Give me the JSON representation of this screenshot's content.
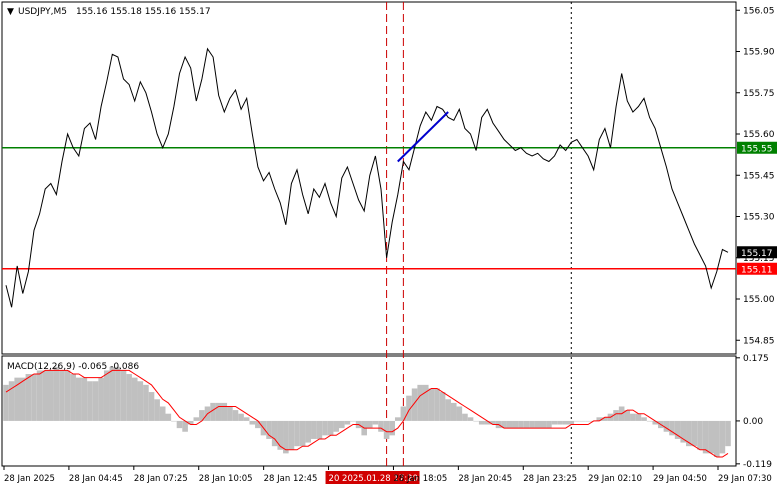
{
  "header": {
    "symbol": "USDJPY,M5",
    "ohlc": "155.16 155.18 155.16 155.17",
    "collapse_glyph": "▼"
  },
  "colors": {
    "price_line": "#000000",
    "support_line": "#ff0000",
    "resistance_line": "#008000",
    "trend_segment": "#0000cd",
    "macd_histogram": "#c0c0c0",
    "macd_signal": "#ff0000",
    "vertical_marker": "#cc0000",
    "last_price_badge": "#000000"
  },
  "chart_data": [
    {
      "type": "line",
      "name": "price",
      "y_ticks": [
        "156.05",
        "155.90",
        "155.75",
        "155.60",
        "155.45",
        "155.30",
        "155.15",
        "155.00",
        "154.85"
      ],
      "ylim": [
        154.8,
        156.08
      ],
      "levels": {
        "resistance": {
          "value": 155.55,
          "label": "155.55"
        },
        "support": {
          "value": 155.11,
          "label": "155.11"
        },
        "last": {
          "value": 155.17,
          "label": "155.17"
        }
      },
      "x_labels": [
        "28 Jan 2025",
        "28 Jan 04:45",
        "28 Jan 07:25",
        "28 Jan 10:05",
        "28 Jan 12:45",
        "20 2025.01.28 17:20",
        "28 Jan 18:05",
        "28 Jan 20:45",
        "28 Jan 23:25",
        "29 Jan 02:10",
        "29 Jan 04:50",
        "29 Jan 07:30"
      ],
      "highlight_label_index": 5,
      "series": [
        {
          "values": [
            155.05,
            154.97,
            155.12,
            155.02,
            155.1,
            155.25,
            155.31,
            155.4,
            155.42,
            155.38,
            155.5,
            155.6,
            155.55,
            155.52,
            155.62,
            155.64,
            155.58,
            155.7,
            155.79,
            155.89,
            155.88,
            155.8,
            155.78,
            155.72,
            155.79,
            155.75,
            155.68,
            155.6,
            155.55,
            155.6,
            155.7,
            155.82,
            155.88,
            155.84,
            155.72,
            155.8,
            155.91,
            155.88,
            155.74,
            155.68,
            155.73,
            155.76,
            155.69,
            155.73,
            155.6,
            155.48,
            155.43,
            155.46,
            155.4,
            155.35,
            155.27,
            155.42,
            155.47,
            155.38,
            155.31,
            155.4,
            155.37,
            155.42,
            155.35,
            155.3,
            155.44,
            155.48,
            155.42,
            155.36,
            155.32,
            155.45,
            155.52,
            155.4,
            155.15,
            155.28,
            155.38,
            155.5,
            155.47,
            155.55,
            155.63,
            155.68,
            155.65,
            155.7,
            155.69,
            155.66,
            155.65,
            155.69,
            155.62,
            155.6,
            155.54,
            155.66,
            155.69,
            155.64,
            155.61,
            155.58,
            155.56,
            155.54,
            155.55,
            155.53,
            155.52,
            155.53,
            155.51,
            155.5,
            155.52,
            155.56,
            155.54,
            155.57,
            155.58,
            155.55,
            155.52,
            155.47,
            155.58,
            155.62,
            155.55,
            155.7,
            155.82,
            155.72,
            155.68,
            155.7,
            155.73,
            155.66,
            155.62,
            155.55,
            155.48,
            155.4,
            155.35,
            155.3,
            155.25,
            155.2,
            155.16,
            155.12,
            155.04,
            155.1,
            155.18,
            155.17
          ],
          "trend_segment": {
            "from_index": 70,
            "to_index": 79,
            "from_value": 155.5,
            "to_value": 155.68
          }
        }
      ]
    },
    {
      "type": "bar",
      "name": "MACD",
      "title": "MACD(12,26,9) -0.065 -0.086",
      "y_ticks": [
        "0.175",
        "0.00",
        "-0.119"
      ],
      "ylim": [
        -0.125,
        0.18
      ],
      "histogram": [
        0.1,
        0.11,
        0.12,
        0.12,
        0.13,
        0.13,
        0.14,
        0.14,
        0.14,
        0.15,
        0.14,
        0.14,
        0.13,
        0.12,
        0.12,
        0.11,
        0.11,
        0.12,
        0.14,
        0.15,
        0.15,
        0.14,
        0.13,
        0.12,
        0.11,
        0.1,
        0.08,
        0.06,
        0.04,
        0.02,
        0.0,
        -0.02,
        -0.03,
        -0.01,
        0.01,
        0.03,
        0.04,
        0.05,
        0.05,
        0.05,
        0.04,
        0.03,
        0.02,
        0.01,
        -0.01,
        -0.02,
        -0.04,
        -0.05,
        -0.07,
        -0.08,
        -0.09,
        -0.08,
        -0.07,
        -0.07,
        -0.06,
        -0.05,
        -0.05,
        -0.04,
        -0.04,
        -0.03,
        -0.02,
        -0.01,
        0.0,
        -0.02,
        -0.04,
        -0.02,
        -0.01,
        -0.03,
        -0.05,
        -0.04,
        0.01,
        0.04,
        0.07,
        0.09,
        0.1,
        0.1,
        0.09,
        0.09,
        0.08,
        0.06,
        0.05,
        0.04,
        0.02,
        0.01,
        0.0,
        -0.01,
        -0.01,
        -0.01,
        -0.02,
        -0.02,
        -0.02,
        -0.02,
        -0.02,
        -0.02,
        -0.02,
        -0.02,
        -0.02,
        -0.02,
        -0.01,
        -0.01,
        -0.01,
        -0.01,
        0.0,
        0.0,
        0.0,
        0.0,
        0.01,
        0.01,
        0.02,
        0.03,
        0.04,
        0.03,
        0.02,
        0.02,
        0.01,
        0.0,
        -0.01,
        -0.02,
        -0.03,
        -0.04,
        -0.05,
        -0.06,
        -0.07,
        -0.07,
        -0.08,
        -0.09,
        -0.09,
        -0.1,
        -0.09,
        -0.07
      ],
      "signal": [
        0.08,
        0.09,
        0.1,
        0.11,
        0.12,
        0.13,
        0.13,
        0.14,
        0.14,
        0.14,
        0.14,
        0.14,
        0.13,
        0.13,
        0.12,
        0.12,
        0.12,
        0.12,
        0.13,
        0.14,
        0.14,
        0.14,
        0.14,
        0.13,
        0.12,
        0.11,
        0.1,
        0.08,
        0.06,
        0.05,
        0.03,
        0.01,
        0.0,
        -0.01,
        -0.01,
        0.0,
        0.02,
        0.03,
        0.04,
        0.04,
        0.04,
        0.04,
        0.03,
        0.02,
        0.01,
        0.0,
        -0.02,
        -0.04,
        -0.05,
        -0.07,
        -0.08,
        -0.08,
        -0.08,
        -0.07,
        -0.07,
        -0.06,
        -0.05,
        -0.05,
        -0.04,
        -0.04,
        -0.03,
        -0.02,
        -0.01,
        -0.01,
        -0.02,
        -0.02,
        -0.02,
        -0.02,
        -0.03,
        -0.03,
        -0.02,
        0.0,
        0.03,
        0.05,
        0.07,
        0.08,
        0.09,
        0.09,
        0.08,
        0.07,
        0.06,
        0.05,
        0.04,
        0.03,
        0.02,
        0.01,
        0.0,
        -0.01,
        -0.01,
        -0.02,
        -0.02,
        -0.02,
        -0.02,
        -0.02,
        -0.02,
        -0.02,
        -0.02,
        -0.02,
        -0.02,
        -0.02,
        -0.02,
        -0.01,
        -0.01,
        -0.01,
        -0.01,
        0.0,
        0.0,
        0.01,
        0.01,
        0.02,
        0.02,
        0.03,
        0.03,
        0.02,
        0.02,
        0.01,
        0.0,
        -0.01,
        -0.02,
        -0.03,
        -0.04,
        -0.05,
        -0.06,
        -0.07,
        -0.08,
        -0.08,
        -0.09,
        -0.1,
        -0.1,
        -0.09
      ]
    }
  ]
}
